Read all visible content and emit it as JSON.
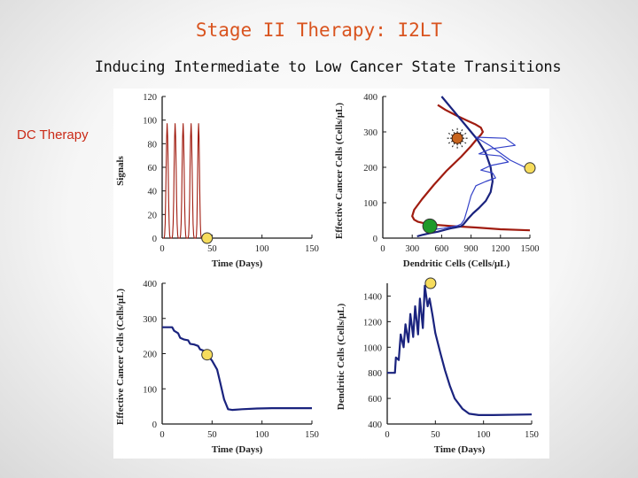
{
  "slide": {
    "title": "Stage II Therapy: I2LT",
    "subtitle": "Inducing Intermediate to Low Cancer State Transitions",
    "therapy_label": "DC Therapy"
  },
  "colors": {
    "title": "#d9541f",
    "label": "#ca2a17",
    "blue": "#1a237e",
    "red": "#a01c10",
    "thin_blue": "#3341c8",
    "marker_yellow": "#f6dc5c",
    "marker_green": "#1f9a2a",
    "marker_orange": "#c8651f"
  },
  "chart_data": [
    {
      "id": "signals",
      "type": "line",
      "xlabel": "Time (Days)",
      "ylabel": "Signals",
      "xlim": [
        0,
        150
      ],
      "ylim": [
        0,
        120
      ],
      "xticks": [
        0,
        50,
        100,
        150
      ],
      "yticks": [
        0,
        20,
        40,
        60,
        80,
        100,
        120
      ],
      "series": [
        {
          "name": "signal",
          "color": "#a01c10",
          "pulses": [
            {
              "t0": 1,
              "t1": 9,
              "peak": 97
            },
            {
              "t0": 9,
              "t1": 17,
              "peak": 97
            },
            {
              "t0": 17,
              "t1": 25,
              "peak": 97
            },
            {
              "t0": 25,
              "t1": 33,
              "peak": 97
            },
            {
              "t0": 33,
              "t1": 40,
              "peak": 97
            }
          ]
        }
      ],
      "markers": [
        {
          "x": 45,
          "y": 0,
          "color": "yellow"
        }
      ]
    },
    {
      "id": "phase",
      "type": "line",
      "xlabel": "Dendritic Cells (Cells/μL)",
      "ylabel": "Effective Cancer Cells (Cells/μL)",
      "xlim": [
        0,
        1500
      ],
      "ylim": [
        0,
        400
      ],
      "xticks": [
        0,
        300,
        600,
        900,
        1200,
        1500
      ],
      "yticks": [
        0,
        100,
        200,
        300,
        400
      ],
      "series": [
        {
          "name": "nullcline-red",
          "color": "#a01c10",
          "x": [
            1500,
            1200,
            950,
            700,
            520,
            420,
            360,
            320,
            300,
            320,
            400,
            520,
            650,
            800,
            900,
            960,
            1000,
            1020,
            1000,
            940,
            860,
            760,
            640,
            560
          ],
          "y": [
            22,
            25,
            30,
            34,
            38,
            42,
            46,
            52,
            62,
            80,
            110,
            150,
            190,
            230,
            260,
            280,
            292,
            300,
            312,
            322,
            332,
            345,
            362,
            376
          ]
        },
        {
          "name": "nullcline-blue",
          "color": "#1a237e",
          "x": [
            600,
            720,
            840,
            960,
            1050,
            1100,
            1120,
            1100,
            1050,
            980,
            920,
            870,
            840,
            820,
            800,
            780,
            760,
            740,
            700,
            640,
            560,
            480,
            400,
            350
          ],
          "y": [
            400,
            360,
            320,
            280,
            240,
            200,
            160,
            130,
            105,
            85,
            70,
            55,
            45,
            38,
            34,
            32,
            31,
            30,
            28,
            24,
            18,
            14,
            9,
            5
          ]
        },
        {
          "name": "trajectory",
          "color": "#3341c8",
          "x": [
            1500,
            1450,
            1300,
            1100,
            950,
            1250,
            1350,
            1100,
            980,
            1200,
            1280,
            1100,
            1000,
            1120,
            1150,
            1050,
            950,
            900,
            860,
            830,
            800,
            760,
            700,
            620,
            540
          ],
          "y": [
            198,
            200,
            220,
            260,
            285,
            282,
            262,
            252,
            238,
            232,
            215,
            205,
            192,
            184,
            170,
            160,
            148,
            120,
            80,
            52,
            40,
            35,
            32,
            28,
            25
          ]
        }
      ],
      "markers": [
        {
          "x": 1500,
          "y": 198,
          "color": "yellow"
        },
        {
          "x": 480,
          "y": 34,
          "color": "green"
        },
        {
          "x": 760,
          "y": 282,
          "color": "orange-star"
        }
      ]
    },
    {
      "id": "cancer",
      "type": "line",
      "xlabel": "Time (Days)",
      "ylabel": "Effective Cancer Cells (Cells/μL)",
      "xlim": [
        0,
        150
      ],
      "ylim": [
        0,
        400
      ],
      "xticks": [
        0,
        50,
        100,
        150
      ],
      "yticks": [
        0,
        100,
        200,
        300,
        400
      ],
      "series": [
        {
          "name": "cancer-cells",
          "color": "#1a237e",
          "x": [
            0,
            10,
            12,
            16,
            18,
            22,
            26,
            28,
            32,
            36,
            38,
            42,
            45,
            50,
            55,
            58,
            62,
            66,
            70,
            80,
            95,
            110,
            150
          ],
          "y": [
            275,
            275,
            265,
            258,
            245,
            240,
            238,
            228,
            226,
            222,
            212,
            208,
            198,
            180,
            155,
            120,
            70,
            42,
            40,
            42,
            44,
            45,
            45
          ]
        }
      ],
      "markers": [
        {
          "x": 45,
          "y": 197,
          "color": "yellow"
        }
      ]
    },
    {
      "id": "dendritic",
      "type": "line",
      "xlabel": "Time (Days)",
      "ylabel": "Dendritic Cells (Cells/μL)",
      "xlim": [
        0,
        150
      ],
      "ylim": [
        400,
        1500
      ],
      "xticks": [
        0,
        50,
        100,
        150
      ],
      "yticks": [
        400,
        600,
        800,
        1000,
        1200,
        1400
      ],
      "series": [
        {
          "name": "dendritic-cells",
          "color": "#1a237e",
          "x": [
            0,
            8,
            9,
            12,
            14,
            17,
            19,
            22,
            24,
            27,
            29,
            32,
            34,
            37,
            39,
            42,
            44,
            47,
            50,
            55,
            60,
            65,
            70,
            78,
            85,
            95,
            110,
            150
          ],
          "y": [
            800,
            800,
            920,
            900,
            1100,
            1000,
            1180,
            1040,
            1260,
            1080,
            1320,
            1100,
            1380,
            1150,
            1480,
            1320,
            1380,
            1250,
            1110,
            960,
            820,
            700,
            600,
            520,
            480,
            470,
            470,
            475
          ]
        }
      ],
      "markers": [
        {
          "x": 45,
          "y": 1500,
          "color": "yellow"
        }
      ]
    }
  ]
}
